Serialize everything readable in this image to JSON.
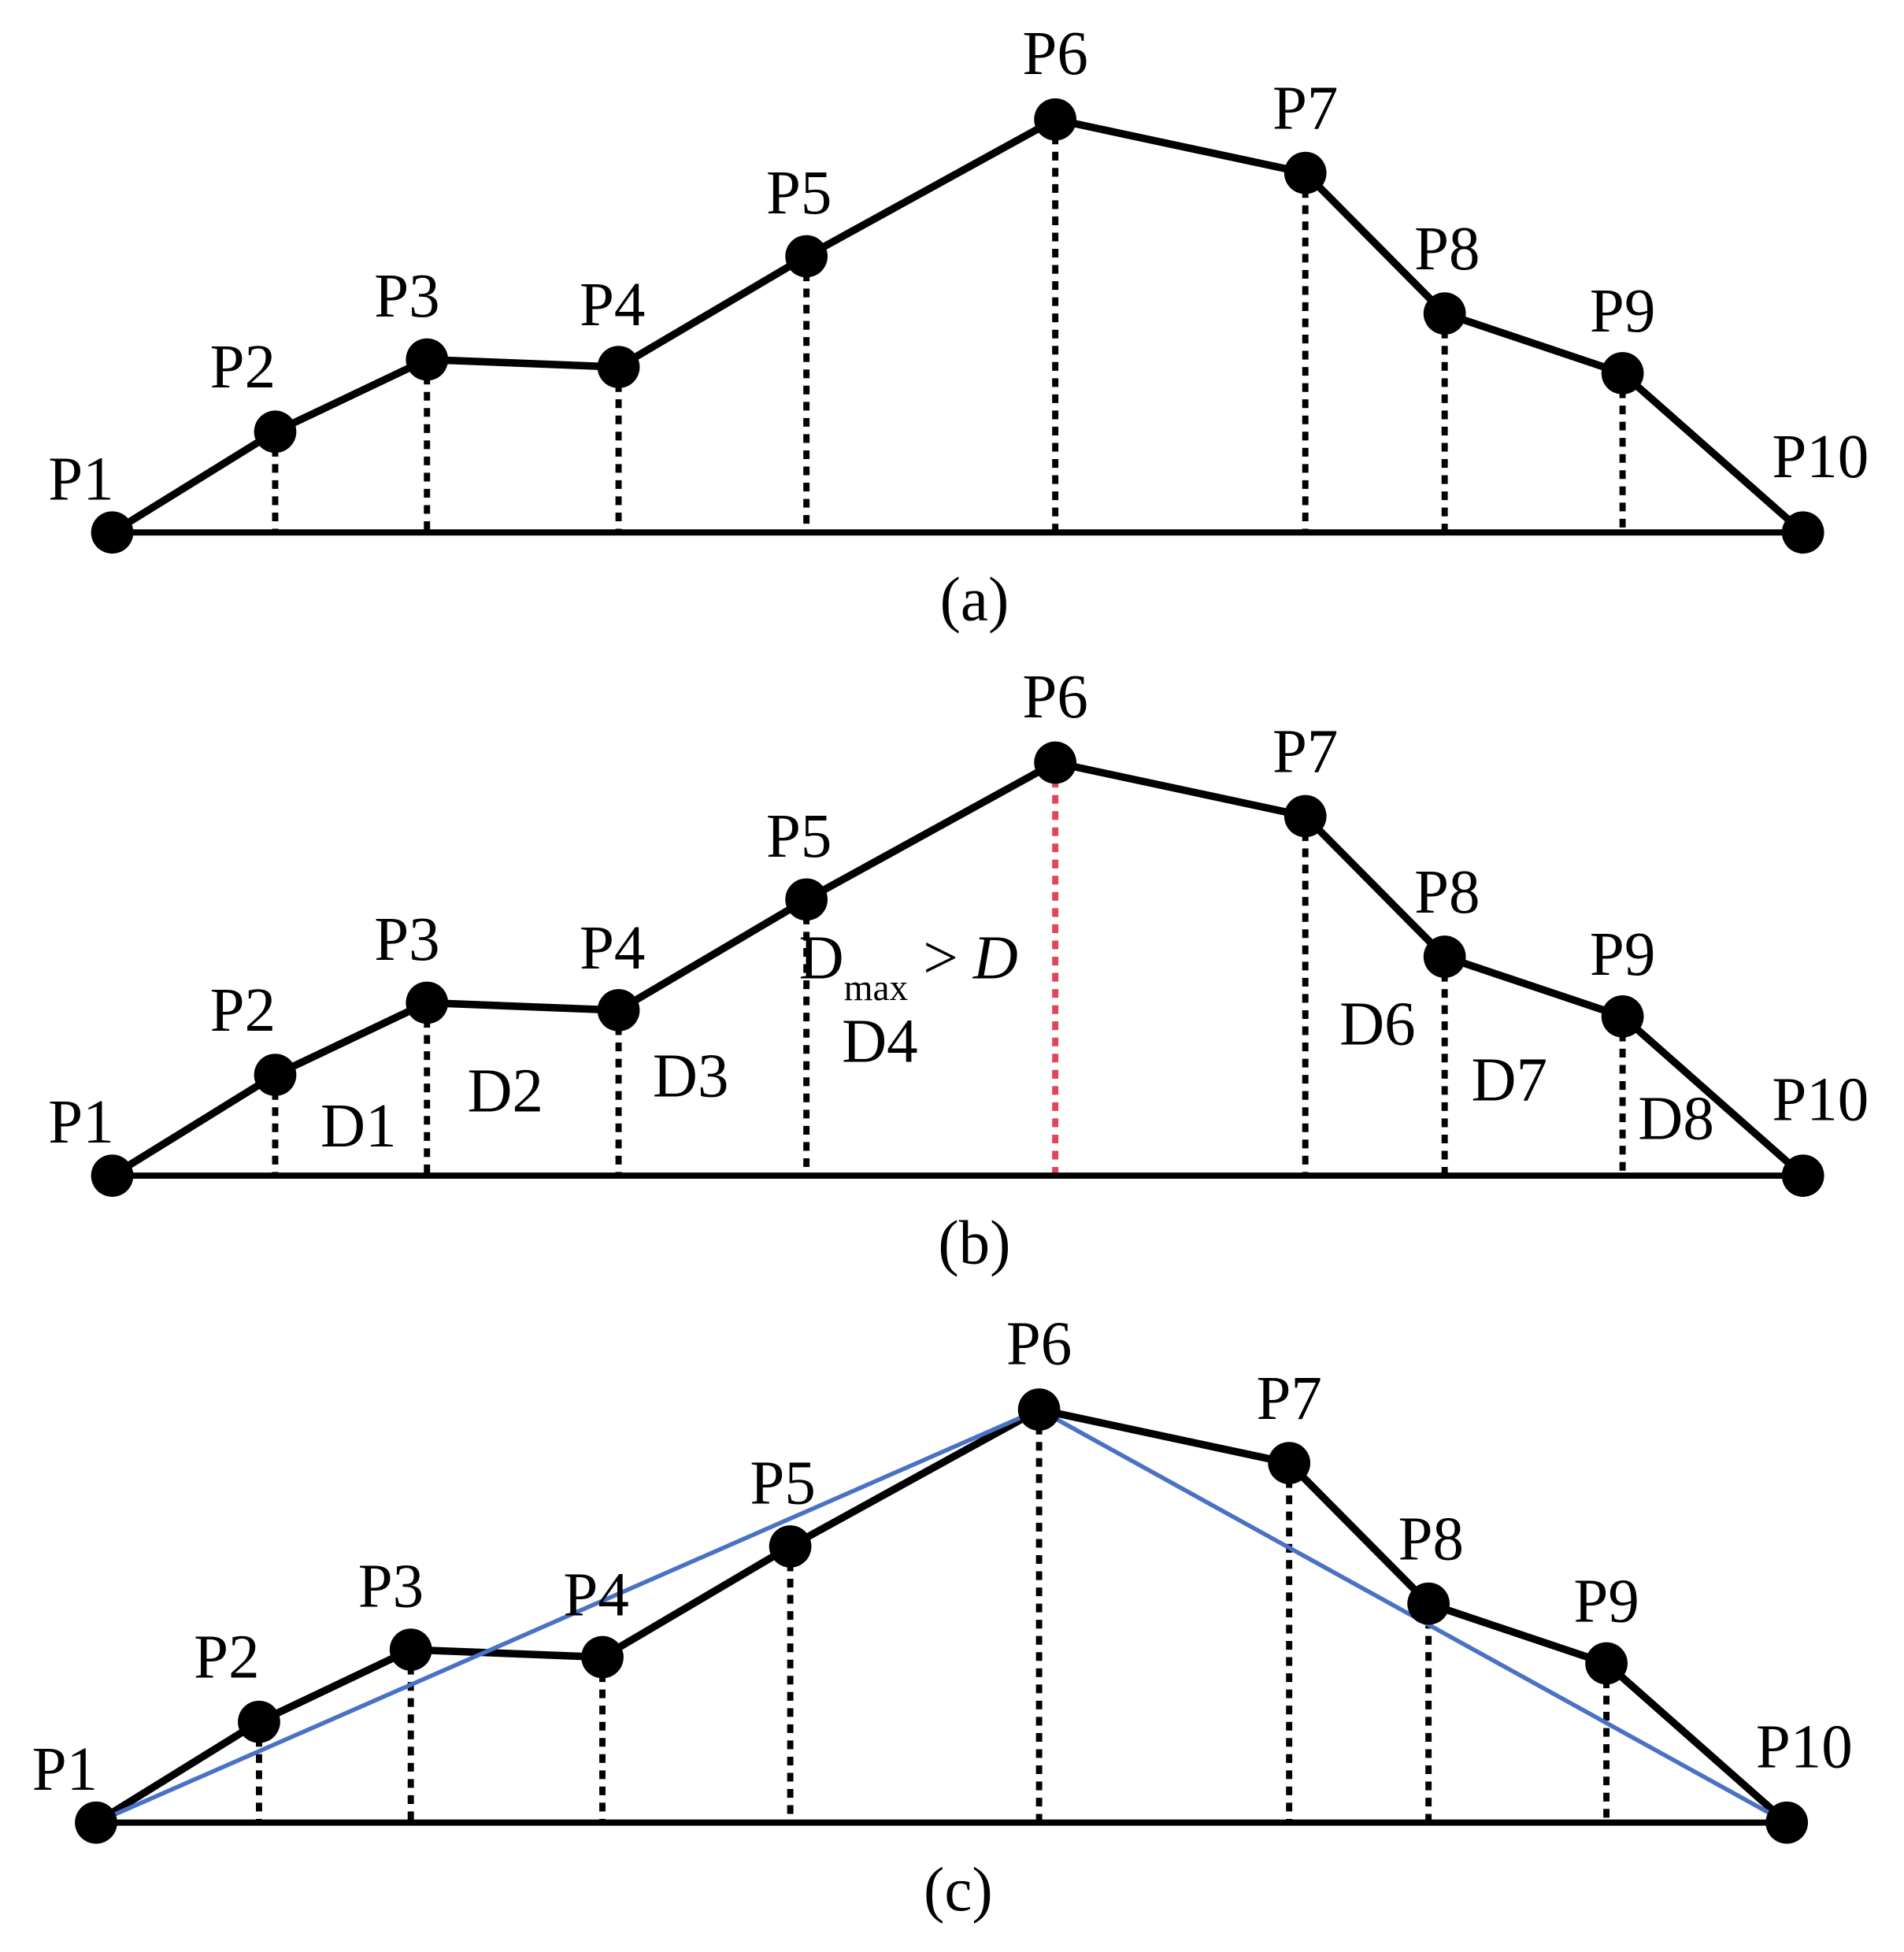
{
  "panels": [
    {
      "caption": "(a)",
      "points": [
        "P1",
        "P2",
        "P3",
        "P4",
        "P5",
        "P6",
        "P7",
        "P8",
        "P9",
        "P10"
      ]
    },
    {
      "caption": "(b)",
      "points": [
        "P1",
        "P2",
        "P3",
        "P4",
        "P5",
        "P6",
        "P7",
        "P8",
        "P9",
        "P10"
      ],
      "distances": [
        "D1",
        "D2",
        "D3",
        "D4",
        "D6",
        "D7",
        "D8"
      ],
      "threshold": {
        "symbol": "D",
        "subscript": "max",
        "relation": ">",
        "bound": "D"
      }
    },
    {
      "caption": "(c)",
      "points": [
        "P1",
        "P2",
        "P3",
        "P4",
        "P5",
        "P6",
        "P7",
        "P8",
        "P9",
        "P10"
      ]
    }
  ]
}
